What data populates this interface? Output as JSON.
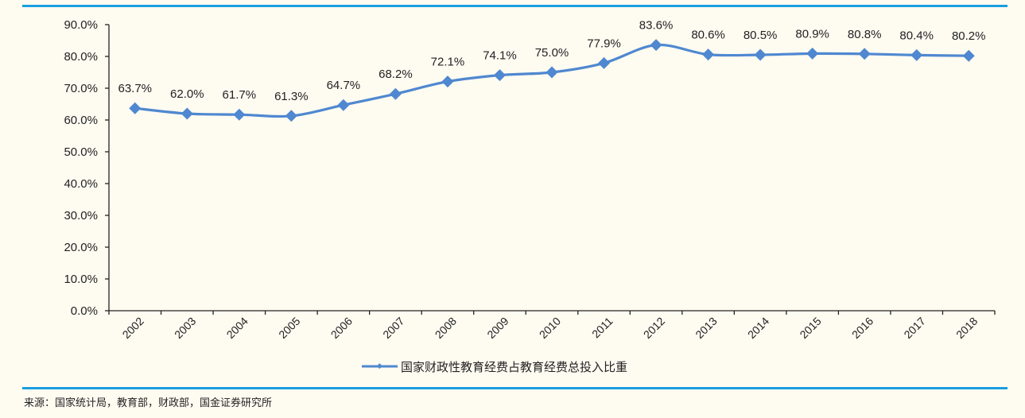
{
  "chart_data": {
    "type": "line",
    "title": "",
    "xlabel": "",
    "ylabel": "",
    "categories": [
      "2002",
      "2003",
      "2004",
      "2005",
      "2006",
      "2007",
      "2008",
      "2009",
      "2010",
      "2011",
      "2012",
      "2013",
      "2014",
      "2015",
      "2016",
      "2017",
      "2018"
    ],
    "series": [
      {
        "name": "国家财政性教育经费占教育经费总投入比重",
        "values": [
          63.7,
          62.0,
          61.7,
          61.3,
          64.7,
          68.2,
          72.1,
          74.1,
          75.0,
          77.9,
          83.6,
          80.6,
          80.5,
          80.9,
          80.8,
          80.4,
          80.2
        ],
        "labels": [
          "63.7%",
          "62.0%",
          "61.7%",
          "61.3%",
          "64.7%",
          "68.2%",
          "72.1%",
          "74.1%",
          "75.0%",
          "77.9%",
          "83.6%",
          "80.6%",
          "80.5%",
          "80.9%",
          "80.8%",
          "80.4%",
          "80.2%"
        ],
        "color": "#4f88d0",
        "marker": "diamond"
      }
    ],
    "ylim": [
      0,
      90
    ],
    "yticks": [
      "0.0%",
      "10.0%",
      "20.0%",
      "30.0%",
      "40.0%",
      "50.0%",
      "60.0%",
      "70.0%",
      "80.0%",
      "90.0%"
    ],
    "grid": false,
    "legend_position": "bottom"
  },
  "legend": {
    "label": "国家财政性教育经费占教育经费总投入比重"
  },
  "source": {
    "text": "来源：国家统计局，教育部，财政部，国金证券研究所"
  },
  "colors": {
    "line": "#4f88d0",
    "rule": "#1a9ee0",
    "background": "#fefbf1"
  }
}
